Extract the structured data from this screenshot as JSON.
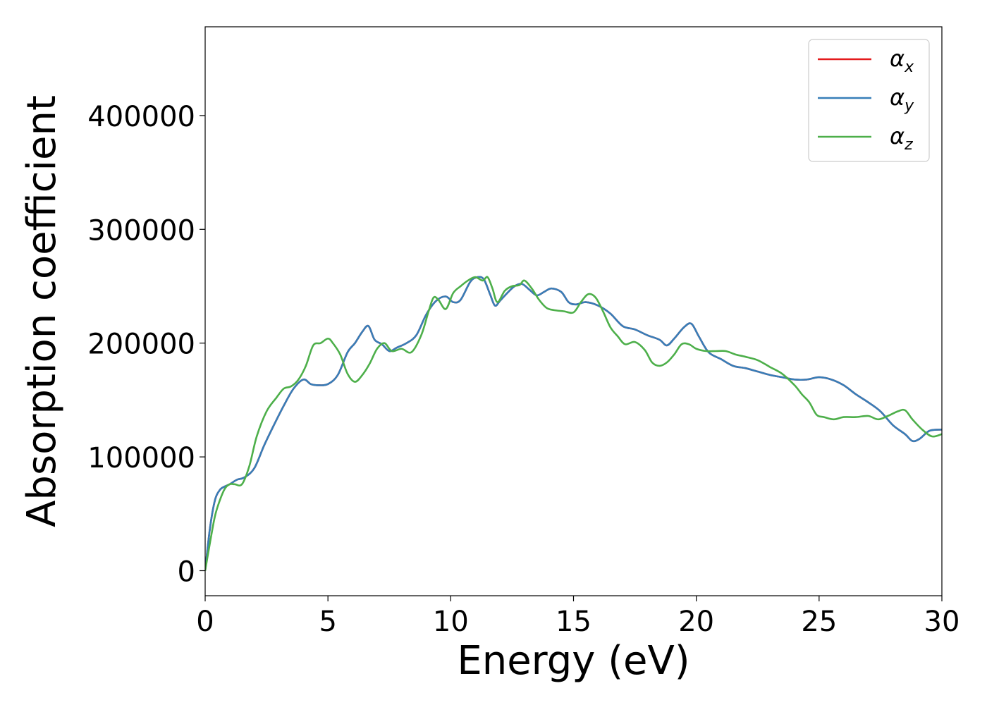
{
  "chart_data": {
    "type": "line",
    "xlabel": "Energy (eV)",
    "ylabel": "Absorption coefficient",
    "xlim": [
      0,
      30
    ],
    "ylim": [
      -22000,
      478000
    ],
    "xticks": [
      0,
      5,
      10,
      15,
      20,
      25,
      30
    ],
    "xtick_labels": [
      "0",
      "5",
      "10",
      "15",
      "20",
      "25",
      "30"
    ],
    "yticks": [
      0,
      100000,
      200000,
      300000,
      400000
    ],
    "ytick_labels": [
      "0",
      "100000",
      "200000",
      "300000",
      "400000"
    ],
    "grid": false,
    "legend_position": "top-right",
    "series": [
      {
        "name": "α",
        "subscript": "x",
        "color": "#e41a1c",
        "x": [
          0,
          0.2,
          0.4,
          0.6,
          0.8,
          1.0,
          1.3,
          1.6,
          2.0,
          2.4,
          2.8,
          3.2,
          3.6,
          4.0,
          4.3,
          4.6,
          5.0,
          5.4,
          5.8,
          6.1,
          6.4,
          6.65,
          6.9,
          7.2,
          7.5,
          7.8,
          8.2,
          8.6,
          9.0,
          9.4,
          9.8,
          10.1,
          10.4,
          10.8,
          11.1,
          11.35,
          11.6,
          11.8,
          12.0,
          12.3,
          12.6,
          12.9,
          13.2,
          13.5,
          13.8,
          14.1,
          14.5,
          14.8,
          15.1,
          15.5,
          16.0,
          16.5,
          17.0,
          17.5,
          18.0,
          18.5,
          18.8,
          19.1,
          19.5,
          19.8,
          20.1,
          20.5,
          21.0,
          21.5,
          22.0,
          22.5,
          23.0,
          23.5,
          24.0,
          24.5,
          25.0,
          25.5,
          26.0,
          26.5,
          27.0,
          27.5,
          28.0,
          28.5,
          28.8,
          29.1,
          29.5,
          30.0
        ],
        "y": [
          0,
          38000,
          62000,
          71000,
          74000,
          76000,
          80000,
          82000,
          90000,
          110000,
          128000,
          145000,
          160000,
          168000,
          164000,
          163000,
          164000,
          172000,
          192000,
          200000,
          210000,
          215000,
          203000,
          199000,
          193000,
          196000,
          200000,
          207000,
          225000,
          237000,
          241000,
          236000,
          238000,
          254000,
          258000,
          256000,
          243000,
          233000,
          237000,
          244000,
          250000,
          252000,
          247000,
          242000,
          245000,
          248000,
          245000,
          236000,
          234000,
          236000,
          233000,
          226000,
          215000,
          212000,
          207000,
          203000,
          198000,
          204000,
          214000,
          217000,
          206000,
          192000,
          186000,
          180000,
          178000,
          175000,
          172000,
          170000,
          168000,
          168000,
          170000,
          168000,
          163000,
          155000,
          148000,
          140000,
          128000,
          120000,
          114000,
          116000,
          123000,
          124000
        ]
      },
      {
        "name": "α",
        "subscript": "y",
        "color": "#377eb8",
        "x": [
          0,
          0.2,
          0.4,
          0.6,
          0.8,
          1.0,
          1.3,
          1.6,
          2.0,
          2.4,
          2.8,
          3.2,
          3.6,
          4.0,
          4.3,
          4.6,
          5.0,
          5.4,
          5.8,
          6.1,
          6.4,
          6.65,
          6.9,
          7.2,
          7.5,
          7.8,
          8.2,
          8.6,
          9.0,
          9.4,
          9.8,
          10.1,
          10.4,
          10.8,
          11.1,
          11.35,
          11.6,
          11.8,
          12.0,
          12.3,
          12.6,
          12.9,
          13.2,
          13.5,
          13.8,
          14.1,
          14.5,
          14.8,
          15.1,
          15.5,
          16.0,
          16.5,
          17.0,
          17.5,
          18.0,
          18.5,
          18.8,
          19.1,
          19.5,
          19.8,
          20.1,
          20.5,
          21.0,
          21.5,
          22.0,
          22.5,
          23.0,
          23.5,
          24.0,
          24.5,
          25.0,
          25.5,
          26.0,
          26.5,
          27.0,
          27.5,
          28.0,
          28.5,
          28.8,
          29.1,
          29.5,
          30.0
        ],
        "y": [
          0,
          38000,
          62000,
          71000,
          74000,
          76000,
          80000,
          82000,
          90000,
          110000,
          128000,
          145000,
          160000,
          168000,
          164000,
          163000,
          164000,
          172000,
          192000,
          200000,
          210000,
          215000,
          203000,
          199000,
          193000,
          196000,
          200000,
          207000,
          225000,
          237000,
          241000,
          236000,
          238000,
          254000,
          258000,
          256000,
          243000,
          233000,
          237000,
          244000,
          250000,
          252000,
          247000,
          242000,
          245000,
          248000,
          245000,
          236000,
          234000,
          236000,
          233000,
          226000,
          215000,
          212000,
          207000,
          203000,
          198000,
          204000,
          214000,
          217000,
          206000,
          192000,
          186000,
          180000,
          178000,
          175000,
          172000,
          170000,
          168000,
          168000,
          170000,
          168000,
          163000,
          155000,
          148000,
          140000,
          128000,
          120000,
          114000,
          116000,
          123000,
          124000
        ]
      },
      {
        "name": "α",
        "subscript": "z",
        "color": "#4daf4a",
        "x": [
          0,
          0.2,
          0.4,
          0.6,
          0.8,
          1.0,
          1.2,
          1.5,
          1.8,
          2.1,
          2.5,
          2.9,
          3.2,
          3.5,
          3.8,
          4.1,
          4.4,
          4.7,
          5.0,
          5.2,
          5.5,
          5.8,
          6.1,
          6.4,
          6.7,
          7.0,
          7.3,
          7.6,
          8.0,
          8.4,
          8.8,
          9.1,
          9.3,
          9.5,
          9.8,
          10.1,
          10.4,
          10.7,
          11.0,
          11.3,
          11.5,
          11.7,
          11.9,
          12.2,
          12.5,
          12.8,
          13.0,
          13.3,
          13.6,
          13.9,
          14.2,
          14.6,
          15.0,
          15.3,
          15.6,
          15.9,
          16.2,
          16.5,
          16.8,
          17.1,
          17.5,
          17.9,
          18.2,
          18.5,
          18.8,
          19.1,
          19.4,
          19.7,
          20.0,
          20.4,
          20.8,
          21.2,
          21.6,
          22.0,
          22.5,
          23.0,
          23.5,
          24.0,
          24.3,
          24.6,
          24.9,
          25.2,
          25.6,
          26.0,
          26.5,
          27.0,
          27.4,
          27.8,
          28.2,
          28.5,
          28.8,
          29.2,
          29.6,
          30.0
        ],
        "y": [
          0,
          25000,
          48000,
          62000,
          72000,
          76000,
          76000,
          76000,
          92000,
          118000,
          140000,
          152000,
          160000,
          162000,
          168000,
          180000,
          198000,
          200000,
          204000,
          200000,
          190000,
          173000,
          166000,
          172000,
          182000,
          195000,
          200000,
          193000,
          195000,
          192000,
          207000,
          228000,
          240000,
          238000,
          230000,
          244000,
          250000,
          255000,
          258000,
          255000,
          258000,
          248000,
          236000,
          246000,
          250000,
          251000,
          255000,
          248000,
          238000,
          231000,
          229000,
          228000,
          227000,
          236000,
          243000,
          240000,
          228000,
          214000,
          206000,
          199000,
          201000,
          194000,
          183000,
          180000,
          183000,
          190000,
          199000,
          199000,
          195000,
          193000,
          193000,
          193000,
          190000,
          188000,
          185000,
          179000,
          173000,
          163000,
          155000,
          148000,
          137000,
          135000,
          133000,
          135000,
          135000,
          136000,
          133000,
          136000,
          140000,
          141000,
          133000,
          124000,
          118000,
          120000
        ]
      }
    ]
  }
}
